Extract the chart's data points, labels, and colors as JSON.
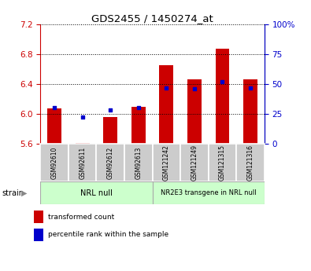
{
  "title": "GDS2455 / 1450274_at",
  "samples": [
    "GSM92610",
    "GSM92611",
    "GSM92612",
    "GSM92613",
    "GSM121242",
    "GSM121249",
    "GSM121315",
    "GSM121316"
  ],
  "transformed_count": [
    6.07,
    5.61,
    5.96,
    6.09,
    6.65,
    6.46,
    6.87,
    6.46
  ],
  "percentile_rank": [
    30,
    22,
    28,
    30,
    47,
    46,
    52,
    47
  ],
  "ylim_left": [
    5.6,
    7.2
  ],
  "ylim_right": [
    0,
    100
  ],
  "yticks_left": [
    5.6,
    6.0,
    6.4,
    6.8,
    7.2
  ],
  "yticks_right": [
    0,
    25,
    50,
    75,
    100
  ],
  "bar_color": "#cc0000",
  "dot_color": "#0000cc",
  "bar_bottom": 5.6,
  "group1_label": "NRL null",
  "group2_label": "NR2E3 transgene in NRL null",
  "group_bg_color": "#ccffcc",
  "tick_label_bg": "#cccccc",
  "strain_label": "strain",
  "legend_red_label": "transformed count",
  "legend_blue_label": "percentile rank within the sample",
  "ylabel_left_color": "#cc0000",
  "ylabel_right_color": "#0000cc",
  "title_color": "#000000",
  "fig_width": 3.95,
  "fig_height": 3.45
}
